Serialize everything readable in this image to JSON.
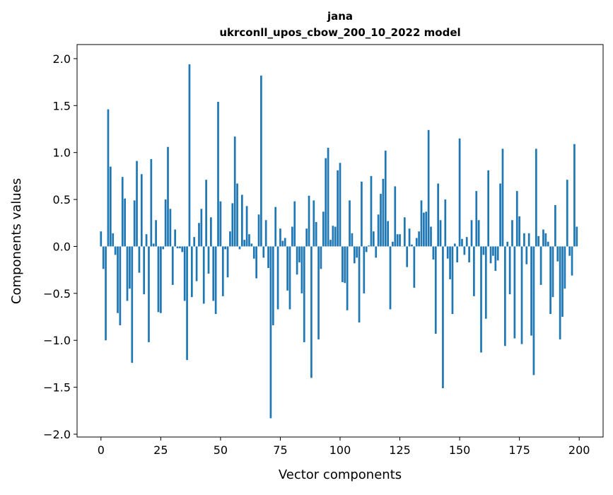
{
  "chart_data": {
    "type": "bar",
    "title": "jana",
    "subtitle": "ukrconll_upos_cbow_200_10_2022 model",
    "xlabel": "Vector components",
    "ylabel": "Components values",
    "xlim": [
      -10,
      210
    ],
    "ylim": [
      -2.03,
      2.15
    ],
    "xticks": [
      0,
      25,
      50,
      75,
      100,
      125,
      150,
      175,
      200
    ],
    "xtick_labels": [
      "0",
      "25",
      "50",
      "75",
      "100",
      "125",
      "150",
      "175",
      "200"
    ],
    "yticks": [
      -2.0,
      -1.5,
      -1.0,
      -0.5,
      0.0,
      0.5,
      1.0,
      1.5,
      2.0
    ],
    "ytick_labels": [
      "−2.0",
      "−1.5",
      "−1.0",
      "−0.5",
      "0.0",
      "0.5",
      "1.0",
      "1.5",
      "2.0"
    ],
    "grid": false,
    "bar_color": "#1f77b4",
    "values": [
      0.16,
      -0.24,
      -1.0,
      1.46,
      0.85,
      0.14,
      -0.09,
      -0.71,
      -0.84,
      0.74,
      0.51,
      -0.58,
      -0.45,
      -1.24,
      0.49,
      0.91,
      -0.28,
      0.77,
      -0.51,
      0.13,
      -1.02,
      0.93,
      0.03,
      0.28,
      -0.7,
      -0.71,
      -0.03,
      0.5,
      1.06,
      0.4,
      -0.41,
      0.18,
      -0.02,
      -0.02,
      -0.06,
      -0.58,
      -1.21,
      1.94,
      -0.54,
      0.1,
      -0.37,
      0.25,
      0.4,
      -0.61,
      0.71,
      -0.29,
      0.31,
      -0.58,
      -0.72,
      1.54,
      0.48,
      -0.53,
      -0.03,
      -0.33,
      0.16,
      0.46,
      1.17,
      0.67,
      -0.03,
      0.55,
      0.07,
      0.43,
      0.13,
      0.03,
      -0.13,
      -0.34,
      0.34,
      1.82,
      -0.12,
      0.28,
      -0.23,
      -1.83,
      -0.84,
      0.42,
      -0.67,
      0.19,
      0.06,
      0.09,
      -0.47,
      -0.67,
      0.21,
      0.48,
      -0.3,
      -0.17,
      -0.5,
      -1.02,
      0.19,
      0.54,
      -1.4,
      0.49,
      0.26,
      -0.99,
      -0.24,
      0.37,
      0.94,
      1.05,
      0.07,
      0.22,
      0.21,
      0.81,
      0.89,
      -0.38,
      -0.39,
      -0.68,
      0.49,
      0.14,
      -0.18,
      -0.12,
      -0.81,
      0.69,
      -0.5,
      -0.06,
      0.01,
      0.75,
      0.16,
      -0.12,
      0.34,
      0.56,
      0.72,
      1.02,
      0.27,
      -0.67,
      0.05,
      0.64,
      0.13,
      0.13,
      0.0,
      0.31,
      -0.22,
      0.19,
      0.02,
      -0.44,
      0.09,
      0.16,
      0.49,
      0.36,
      0.37,
      1.24,
      0.21,
      -0.14,
      -0.93,
      0.67,
      0.28,
      -1.51,
      0.5,
      -0.13,
      -0.35,
      -0.72,
      0.03,
      -0.17,
      1.15,
      0.08,
      -0.09,
      0.1,
      -0.17,
      0.28,
      -0.53,
      0.59,
      0.28,
      -1.13,
      -0.09,
      -0.77,
      0.81,
      -0.18,
      -0.1,
      -0.26,
      -0.15,
      0.67,
      1.04,
      -1.06,
      0.05,
      -0.51,
      0.28,
      -0.98,
      0.59,
      0.32,
      -1.04,
      0.14,
      -0.19,
      0.14,
      -0.95,
      -1.37,
      1.04,
      0.11,
      -0.41,
      0.18,
      0.14,
      0.05,
      -0.72,
      -0.54,
      0.44,
      -0.16,
      -0.99,
      -0.75,
      -0.45,
      0.71,
      -0.1,
      -0.31,
      1.09,
      0.21
    ]
  }
}
